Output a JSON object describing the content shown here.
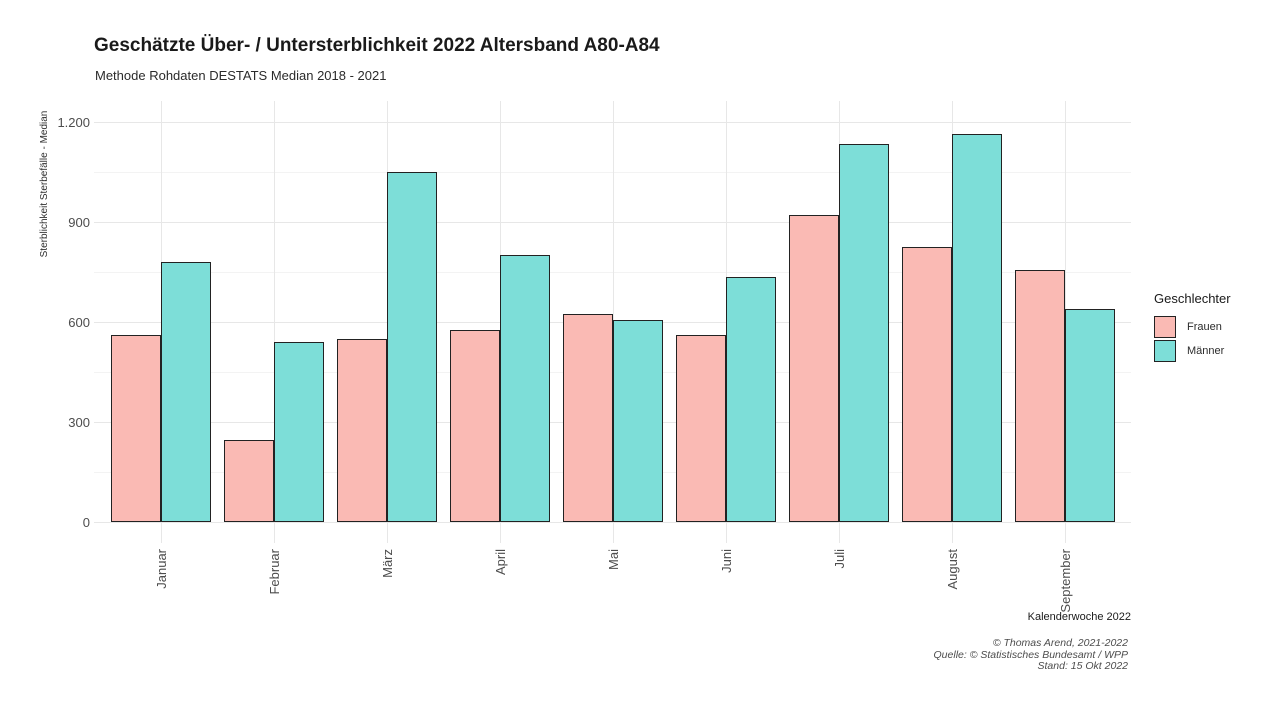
{
  "chart_data": {
    "type": "bar",
    "title": "Geschätzte Über- / Untersterblichkeit 2022 Altersband A80-A84",
    "subtitle": "Methode Rohdaten DESTATS Median 2018 - 2021",
    "xlabel": "Kalenderwoche 2022",
    "ylabel": "Sterblichkeit Sterbefälle - Median",
    "categories": [
      "Januar",
      "Februar",
      "März",
      "April",
      "Mai",
      "Juni",
      "Juli",
      "August",
      "September"
    ],
    "series": [
      {
        "name": "Frauen",
        "color": "#FABAB4",
        "values": [
          560,
          245,
          550,
          575,
          625,
          560,
          920,
          825,
          755
        ]
      },
      {
        "name": "Männer",
        "color": "#7DDED8",
        "values": [
          780,
          540,
          1050,
          800,
          605,
          735,
          1135,
          1165,
          640
        ]
      }
    ],
    "ylim": [
      0,
      1200
    ],
    "yticks": [
      {
        "value": 0,
        "label": "0"
      },
      {
        "value": 300,
        "label": "300"
      },
      {
        "value": 600,
        "label": "600"
      },
      {
        "value": 900,
        "label": "900"
      },
      {
        "value": 1200,
        "label": "1.200"
      }
    ],
    "yminor": [
      150,
      450,
      750,
      1050
    ],
    "legend_title": "Geschlechter",
    "legend_position": "right",
    "grid": true,
    "bar_outline_color": "#222222"
  },
  "caption": {
    "lines": [
      "© Thomas Arend, 2021-2022",
      "Quelle: © Statistisches Bundesamt / WPP",
      "Stand: 15 Okt 2022"
    ]
  }
}
